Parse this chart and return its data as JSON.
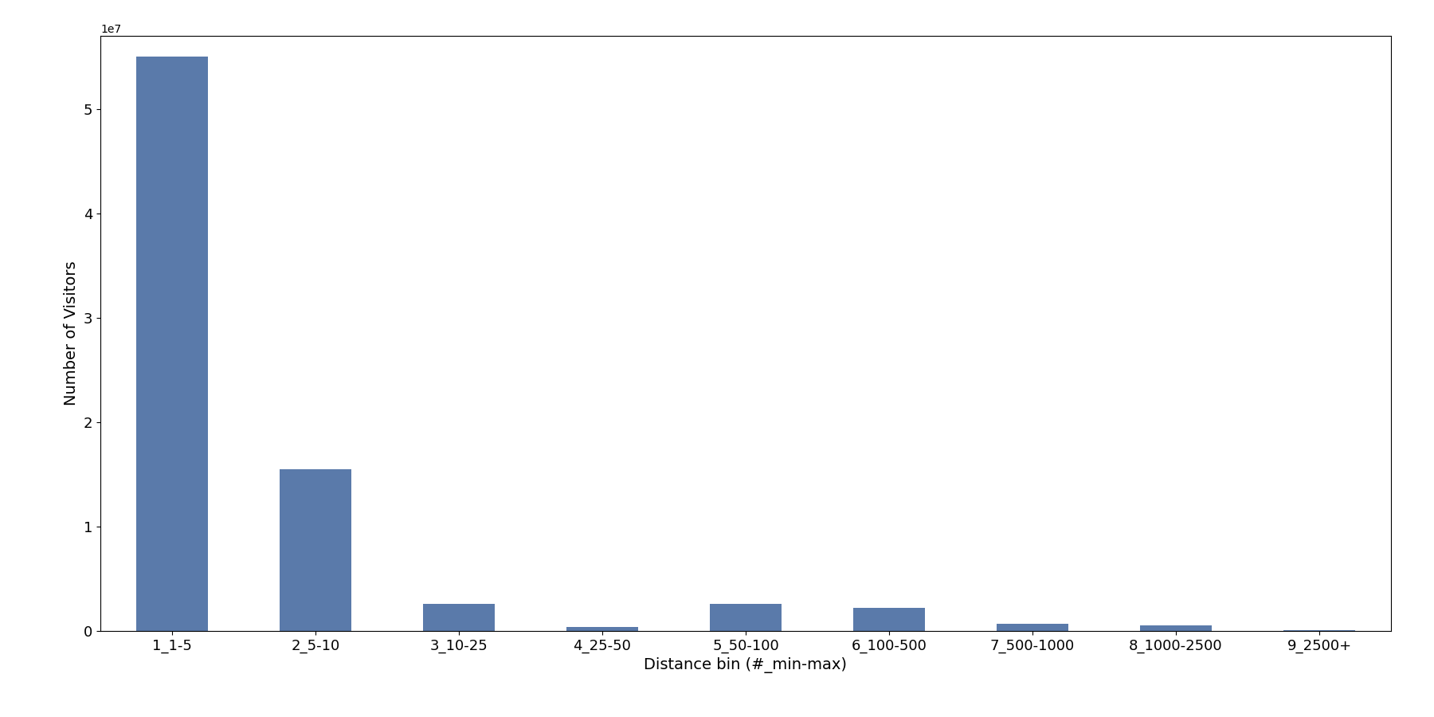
{
  "categories": [
    "1_1-5",
    "2_5-10",
    "3_10-25",
    "4_25-50",
    "5_50-100",
    "6_100-500",
    "7_500-1000",
    "8_1000-2500",
    "9_2500+"
  ],
  "values": [
    55000000,
    15500000,
    2600000,
    400000,
    2600000,
    2200000,
    700000,
    500000,
    50000
  ],
  "bar_color": "#5a7aaa",
  "xlabel": "Distance bin (#_min-max)",
  "ylabel": "Number of Visitors",
  "figsize": [
    18.0,
    9.0
  ],
  "dpi": 100,
  "ylim": [
    0,
    57000000
  ],
  "bar_width": 0.5
}
